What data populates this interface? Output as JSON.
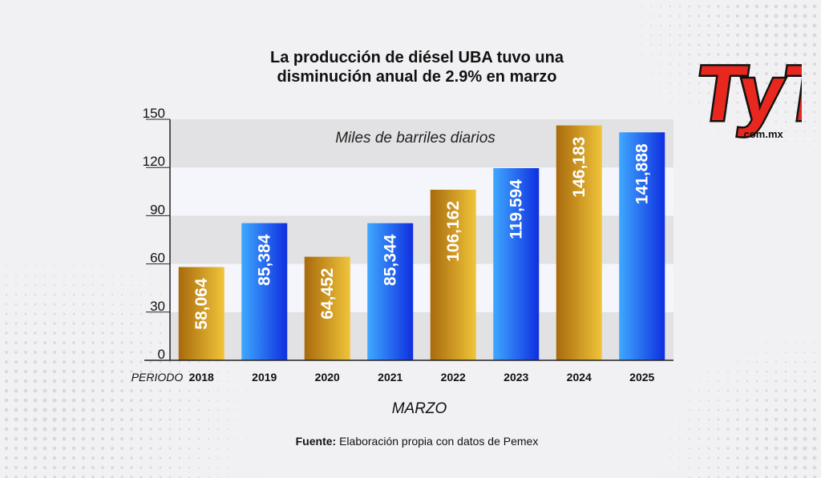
{
  "title_lines": [
    "La producción de diésel UBA tuvo una",
    "disminución anual de 2.9% en marzo"
  ],
  "logo": {
    "text": "TyT",
    "domain": ".com.mx"
  },
  "source": {
    "label": "Fuente:",
    "text": "Elaboración propia con datos de Pemex"
  },
  "colors": {
    "gold_dark": "#a86a0c",
    "gold_light": "#f0c43a",
    "blue_dark": "#0f2fe0",
    "blue_light": "#3fa8ff",
    "band_dark": "#e2e2e4",
    "band_light": "#f4f6fb",
    "brand_red": "#e8281e"
  },
  "chart_data": {
    "type": "bar",
    "categories": [
      "2018",
      "2019",
      "2020",
      "2021",
      "2022",
      "2023",
      "2024",
      "2025"
    ],
    "values": [
      58.064,
      85.384,
      64.452,
      85.344,
      106.162,
      119.594,
      146.183,
      141.888
    ],
    "value_labels": [
      "58,064",
      "85,384",
      "64,452",
      "85,344",
      "106,162",
      "119,594",
      "146,183",
      "141,888"
    ],
    "bar_colors": [
      "gold",
      "blue",
      "gold",
      "blue",
      "gold",
      "blue",
      "gold",
      "blue"
    ],
    "unit_label": "Miles de barriles diarios",
    "x_axis_prefix": "PERIODO",
    "xlabel": "MARZO",
    "ylim": [
      0,
      150
    ],
    "yticks": [
      0,
      30,
      60,
      90,
      120,
      150
    ],
    "grid": "alternating horizontal bands"
  }
}
